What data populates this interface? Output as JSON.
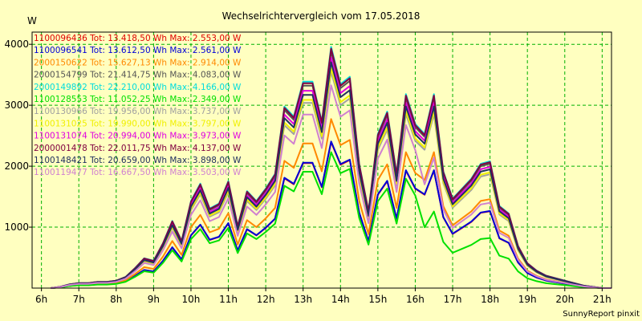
{
  "chart_data": {
    "type": "line",
    "title": "Wechselrichtervergleich vom 17.05.2018",
    "ylabel": "W",
    "footer": "SunnyReport pinxit",
    "xlim": [
      5.75,
      21.25
    ],
    "ylim": [
      0,
      4200
    ],
    "x_ticks": [
      {
        "value": 6,
        "label": "6h"
      },
      {
        "value": 7,
        "label": "7h"
      },
      {
        "value": 8,
        "label": "8h"
      },
      {
        "value": 9,
        "label": "9h"
      },
      {
        "value": 10,
        "label": "10h"
      },
      {
        "value": 11,
        "label": "11h"
      },
      {
        "value": 12,
        "label": "12h"
      },
      {
        "value": 13,
        "label": "13h"
      },
      {
        "value": 14,
        "label": "14h"
      },
      {
        "value": 15,
        "label": "15h"
      },
      {
        "value": 16,
        "label": "16h"
      },
      {
        "value": 17,
        "label": "17h"
      },
      {
        "value": 18,
        "label": "18h"
      },
      {
        "value": 19,
        "label": "19h"
      },
      {
        "value": 20,
        "label": "20h"
      },
      {
        "value": 21,
        "label": "21h"
      }
    ],
    "y_ticks": [
      {
        "value": 1000,
        "label": "1000"
      },
      {
        "value": 2000,
        "label": "2000"
      },
      {
        "value": 3000,
        "label": "3000"
      },
      {
        "value": 4000,
        "label": "4000"
      }
    ],
    "grid": true,
    "legend_position": "top-left",
    "x": [
      6.25,
      6.5,
      6.75,
      7,
      7.25,
      7.5,
      7.75,
      8,
      8.25,
      8.5,
      8.75,
      9,
      9.25,
      9.5,
      9.75,
      10,
      10.25,
      10.5,
      10.75,
      11,
      11.25,
      11.5,
      11.75,
      12,
      12.25,
      12.5,
      12.75,
      13,
      13.25,
      13.5,
      13.75,
      14,
      14.25,
      14.5,
      14.75,
      15,
      15.25,
      15.5,
      15.75,
      16,
      16.25,
      16.5,
      16.75,
      17,
      17.25,
      17.5,
      17.75,
      18,
      18.25,
      18.5,
      18.75,
      19,
      19.25,
      19.5,
      19.75,
      20,
      20.25,
      20.5,
      20.75,
      21,
      21.25
    ],
    "base_shape": [
      0,
      0.005,
      0.015,
      0.02,
      0.02,
      0.025,
      0.025,
      0.03,
      0.045,
      0.08,
      0.12,
      0.11,
      0.18,
      0.27,
      0.19,
      0.35,
      0.42,
      0.32,
      0.34,
      0.43,
      0.25,
      0.39,
      0.35,
      0.4,
      0.46,
      0.73,
      0.69,
      0.83,
      0.83,
      0.67,
      0.97,
      0.82,
      0.85,
      0.5,
      0.31,
      0.62,
      0.71,
      0.46,
      0.78,
      0.66,
      0.62,
      0.78,
      0.47,
      0.36,
      0.4,
      0.44,
      0.5,
      0.51,
      0.33,
      0.3,
      0.17,
      0.1,
      0.07,
      0.05,
      0.04,
      0.03,
      0.02,
      0.01,
      0.005,
      0,
      0
    ],
    "series": [
      {
        "label": "1100096436 Tot: 13.418,50 Wh Max: 2.553,00 W",
        "color": "#e00000",
        "scale": 2470
      },
      {
        "label": "1100096541 Tot: 13.612,50 Wh Max: 2.561,00 W",
        "color": "#0000d8",
        "scale": 2480
      },
      {
        "label": "2000150622 Tot: 15.627,13 Wh Max: 2.914,00 W",
        "color": "#ff8800",
        "scale": 2860
      },
      {
        "label": "2000154799 Tot: 21.414,75 Wh Max: 4.083,00 W",
        "color": "#555555",
        "scale": 4000
      },
      {
        "label": "2000149892 Tot: 22.210,00 Wh Max: 4.166,00 W",
        "color": "#00dcdc",
        "scale": 4080
      },
      {
        "label": "1100128553 Tot: 11.052,25 Wh Max: 2.349,00 W",
        "color": "#00e000",
        "scale": 2300,
        "late_factor": 0.7
      },
      {
        "label": "1100130966 Tot: 19.956,00 Wh Max: 3.737,00 W",
        "color": "#a0a0a0",
        "scale": 3660
      },
      {
        "label": "1100131025 Tot: 19.990,00 Wh Max: 3.797,00 W",
        "color": "#f0f000",
        "scale": 3720
      },
      {
        "label": "1100131074 Tot: 20.994,00 Wh Max: 3.973,00 W",
        "color": "#e000e0",
        "scale": 3900
      },
      {
        "label": "2000001478 Tot: 22.011,75 Wh Max: 4.137,00 W",
        "color": "#800040",
        "scale": 4050
      },
      {
        "label": "1100148421 Tot: 20.659,00 Wh Max: 3.898,00 W",
        "color": "#203060",
        "scale": 3820
      },
      {
        "label": "1100119477 Tot: 16.667,50 Wh Max: 3.503,00 W",
        "color": "#d080d0",
        "scale": 3430,
        "late_factor": 0.8
      }
    ]
  }
}
